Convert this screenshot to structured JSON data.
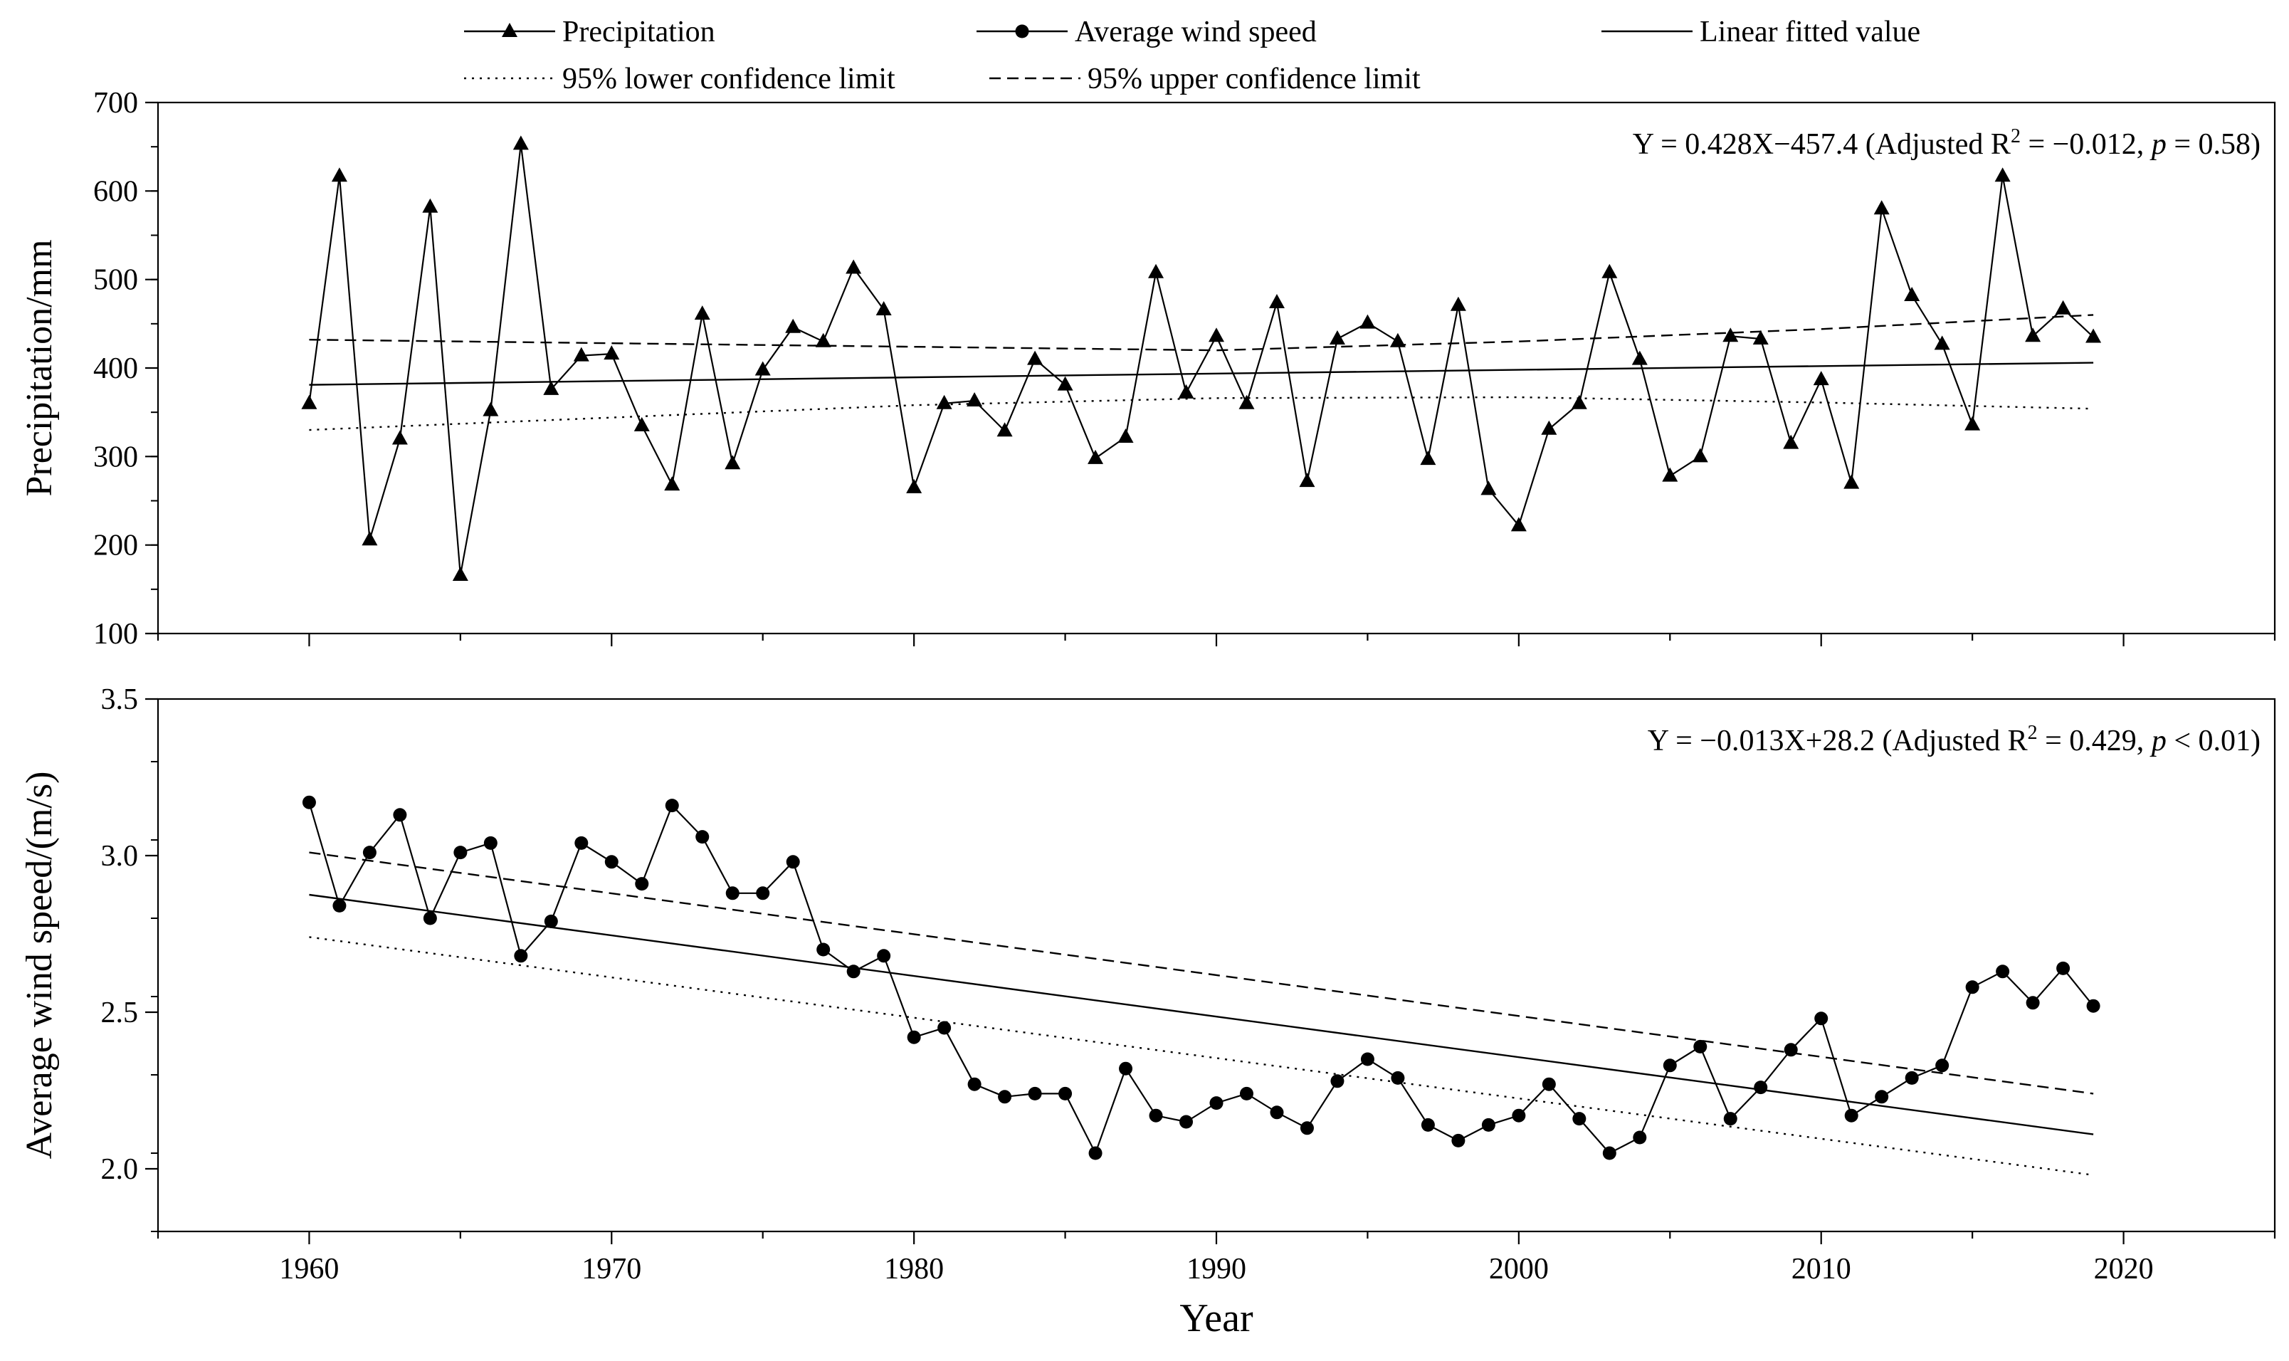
{
  "legend": {
    "items": [
      {
        "label": "Precipitation",
        "marker": "triangle",
        "dash": "solid"
      },
      {
        "label": "Average wind speed",
        "marker": "circle",
        "dash": "solid"
      },
      {
        "label": "Linear fitted value",
        "marker": "none",
        "dash": "solid"
      },
      {
        "label": "95% lower confidence limit",
        "marker": "none",
        "dash": "dotted"
      },
      {
        "label": "95% upper confidence limit",
        "marker": "none",
        "dash": "dashed"
      }
    ]
  },
  "chart_data": [
    {
      "type": "line",
      "ylabel": "Precipitation/mm",
      "ylim": [
        100,
        700
      ],
      "yticks": [
        100,
        200,
        300,
        400,
        500,
        600,
        700
      ],
      "yminor": 50,
      "xlim": [
        1955,
        2025
      ],
      "equation": {
        "prefix": "Y = 0.428X−457.4 (Adjusted R",
        "sup": "2",
        "mid": " = −0.012, ",
        "italic": "p",
        "suffix": " = 0.58)"
      },
      "x": [
        1960,
        1961,
        1962,
        1963,
        1964,
        1965,
        1966,
        1967,
        1968,
        1969,
        1970,
        1971,
        1972,
        1973,
        1974,
        1975,
        1976,
        1977,
        1978,
        1979,
        1980,
        1981,
        1982,
        1983,
        1984,
        1985,
        1986,
        1987,
        1988,
        1989,
        1990,
        1991,
        1992,
        1993,
        1994,
        1995,
        1996,
        1997,
        1998,
        1999,
        2000,
        2001,
        2002,
        2003,
        2004,
        2005,
        2006,
        2007,
        2008,
        2009,
        2010,
        2011,
        2012,
        2013,
        2014,
        2015,
        2016,
        2017,
        2018,
        2019
      ],
      "series": [
        {
          "name": "Precipitation",
          "marker": "triangle",
          "values": [
            360,
            617,
            206,
            320,
            582,
            166,
            352,
            653,
            376,
            414,
            416,
            335,
            268,
            461,
            292,
            398,
            446,
            430,
            513,
            466,
            265,
            360,
            363,
            329,
            410,
            381,
            298,
            322,
            508,
            372,
            436,
            360,
            474,
            272,
            433,
            451,
            430,
            297,
            471,
            263,
            222,
            331,
            360,
            508,
            410,
            278,
            300,
            436,
            433,
            315,
            387,
            270,
            580,
            482,
            427,
            336,
            617,
            436,
            467,
            435
          ]
        },
        {
          "name": "Linear fitted value",
          "dash": "solid",
          "start": [
            1960,
            381
          ],
          "end": [
            2019,
            406
          ]
        },
        {
          "name": "95% lower confidence limit",
          "dash": "dotted",
          "points": [
            [
              1960,
              330
            ],
            [
              1970,
              344
            ],
            [
              1980,
              358
            ],
            [
              1990,
              366
            ],
            [
              2000,
              367
            ],
            [
              2010,
              361
            ],
            [
              2019,
              354
            ]
          ]
        },
        {
          "name": "95% upper confidence limit",
          "dash": "dashed",
          "points": [
            [
              1960,
              432
            ],
            [
              1970,
              428
            ],
            [
              1980,
              424
            ],
            [
              1990,
              420
            ],
            [
              2000,
              430
            ],
            [
              2010,
              444
            ],
            [
              2019,
              460
            ]
          ]
        }
      ]
    },
    {
      "type": "line",
      "ylabel": "Average wind speed/(m/s)",
      "xlabel": "Year",
      "ylim": [
        1.8,
        3.5
      ],
      "yticks": [
        2.0,
        2.5,
        3.0,
        3.5
      ],
      "ytick_labels": [
        "2.0",
        "2.5",
        "3.0",
        "3.5"
      ],
      "yminor": 0.25,
      "xlim": [
        1955,
        2025
      ],
      "xticks": [
        1960,
        1970,
        1980,
        1990,
        2000,
        2010,
        2020
      ],
      "equation": {
        "prefix": "Y = −0.013X+28.2 (Adjusted R",
        "sup": "2",
        "mid": " = 0.429, ",
        "italic": "p",
        "suffix": " < 0.01)"
      },
      "x": [
        1960,
        1961,
        1962,
        1963,
        1964,
        1965,
        1966,
        1967,
        1968,
        1969,
        1970,
        1971,
        1972,
        1973,
        1974,
        1975,
        1976,
        1977,
        1978,
        1979,
        1980,
        1981,
        1982,
        1983,
        1984,
        1985,
        1986,
        1987,
        1988,
        1989,
        1990,
        1991,
        1992,
        1993,
        1994,
        1995,
        1996,
        1997,
        1998,
        1999,
        2000,
        2001,
        2002,
        2003,
        2004,
        2005,
        2006,
        2007,
        2008,
        2009,
        2010,
        2011,
        2012,
        2013,
        2014,
        2015,
        2016,
        2017,
        2018,
        2019
      ],
      "series": [
        {
          "name": "Average wind speed",
          "marker": "circle",
          "values": [
            3.17,
            2.84,
            3.01,
            3.13,
            2.8,
            3.01,
            3.04,
            2.68,
            2.79,
            3.04,
            2.98,
            2.91,
            3.16,
            3.06,
            2.88,
            2.88,
            2.98,
            2.7,
            2.63,
            2.68,
            2.42,
            2.45,
            2.27,
            2.23,
            2.24,
            2.24,
            2.05,
            2.32,
            2.17,
            2.15,
            2.21,
            2.24,
            2.18,
            2.13,
            2.28,
            2.35,
            2.29,
            2.14,
            2.09,
            2.14,
            2.17,
            2.27,
            2.16,
            2.05,
            2.1,
            2.33,
            2.39,
            2.16,
            2.26,
            2.38,
            2.48,
            2.17,
            2.23,
            2.29,
            2.33,
            2.58,
            2.63,
            2.53,
            2.64,
            2.52
          ]
        },
        {
          "name": "Linear fitted value",
          "dash": "solid",
          "start": [
            1960,
            2.875
          ],
          "end": [
            2019,
            2.11
          ]
        },
        {
          "name": "95% lower confidence limit",
          "dash": "dotted",
          "start": [
            1960,
            2.74
          ],
          "end": [
            2019,
            1.98
          ]
        },
        {
          "name": "95% upper confidence limit",
          "dash": "dashed",
          "start": [
            1960,
            3.01
          ],
          "end": [
            2019,
            2.24
          ]
        }
      ]
    }
  ]
}
